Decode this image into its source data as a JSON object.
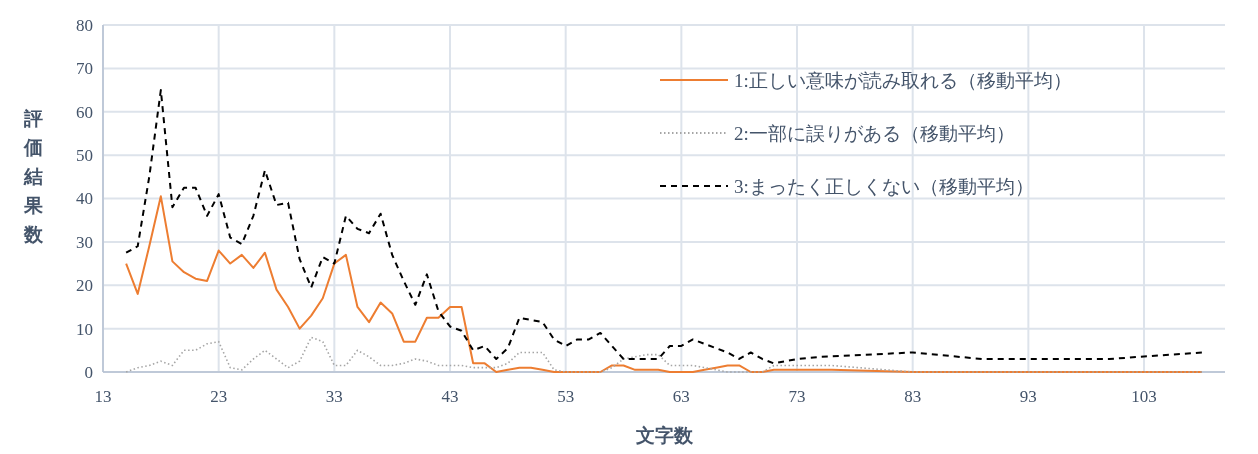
{
  "chart_data": {
    "type": "line",
    "xlabel": "文字数",
    "ylabel": "評価結果数",
    "xlim": [
      13,
      110
    ],
    "xticks": [
      13,
      23,
      33,
      43,
      53,
      63,
      73,
      83,
      93,
      103
    ],
    "ylim": [
      0,
      80
    ],
    "yticks": [
      0,
      10,
      20,
      30,
      40,
      50,
      60,
      70,
      80
    ],
    "grid": true,
    "legend": "top right",
    "marker": "none",
    "series": [
      {
        "name": "1:正しい意味が読み取れる（移動平均）",
        "color": "#ed7d31",
        "line_style": "solid",
        "x": [
          15,
          16,
          17,
          18,
          19,
          20,
          21,
          22,
          23,
          24,
          25,
          26,
          27,
          28,
          29,
          30,
          31,
          32,
          33,
          34,
          35,
          36,
          37,
          38,
          39,
          40,
          41,
          42,
          43,
          44,
          45,
          46,
          47,
          48,
          49,
          50,
          51,
          52,
          53,
          56,
          57,
          58,
          59,
          60,
          61,
          62,
          64,
          65,
          66,
          67,
          68,
          69,
          70,
          71,
          76,
          83,
          108
        ],
        "values": [
          25,
          18,
          29,
          40.5,
          25.5,
          23,
          21.5,
          21,
          28,
          25,
          27,
          24,
          27.5,
          19,
          15,
          10,
          13,
          17,
          25,
          27,
          15,
          11.5,
          16,
          13.5,
          7,
          7,
          12.5,
          12.5,
          15,
          15,
          2,
          2,
          0,
          0.5,
          1,
          1,
          0.5,
          0,
          0,
          0,
          1.5,
          1.5,
          0.5,
          0.5,
          0.5,
          0,
          0,
          0.5,
          1,
          1.5,
          1.5,
          0,
          0,
          0.5,
          0.5,
          0,
          0
        ]
      },
      {
        "name": "2:一部に誤りがある（移動平均）",
        "color": "#a5a5a5",
        "line_style": "dotted",
        "x": [
          15,
          16,
          17,
          18,
          19,
          20,
          21,
          22,
          23,
          24,
          25,
          26,
          27,
          28,
          29,
          30,
          31,
          32,
          33,
          34,
          35,
          36,
          37,
          38,
          39,
          40,
          41,
          42,
          43,
          44,
          45,
          46,
          47,
          48,
          49,
          50,
          51,
          52,
          53,
          56,
          57,
          58,
          59,
          60,
          61,
          62,
          63,
          64,
          65,
          66,
          67,
          68,
          69,
          70,
          71,
          72,
          76,
          83,
          108
        ],
        "values": [
          0,
          1,
          1.5,
          2.5,
          1.5,
          5,
          5,
          6.5,
          7,
          1,
          0.5,
          3,
          5,
          3,
          1,
          2.5,
          8,
          7,
          1.5,
          1.5,
          5,
          3.5,
          1.5,
          1.5,
          2,
          3,
          2.5,
          1.5,
          1.5,
          1.5,
          1,
          1,
          1,
          2,
          4.5,
          4.5,
          4.5,
          0.5,
          0,
          0,
          1,
          3,
          3.5,
          4,
          4,
          1.5,
          1.5,
          1.5,
          1,
          0.5,
          0,
          0,
          0,
          0,
          1.5,
          1.5,
          1.5,
          0,
          0
        ]
      },
      {
        "name": "3:まったく正しくない（移動平均）",
        "color": "#000000",
        "line_style": "dashed",
        "x": [
          15,
          16,
          17,
          18,
          19,
          20,
          21,
          22,
          23,
          24,
          25,
          26,
          27,
          28,
          29,
          30,
          31,
          32,
          33,
          34,
          35,
          36,
          37,
          38,
          39,
          40,
          41,
          42,
          43,
          44,
          45,
          46,
          47,
          48,
          49,
          50,
          51,
          52,
          53,
          54,
          55,
          56,
          57,
          58,
          59,
          60,
          61,
          62,
          63,
          64,
          65,
          66,
          67,
          68,
          69,
          70,
          71,
          72,
          73,
          75,
          83,
          89,
          100,
          108
        ],
        "values": [
          27.5,
          29,
          45,
          65,
          38,
          42.5,
          42.5,
          36,
          41,
          31,
          29.5,
          36,
          46.5,
          38.5,
          39,
          26,
          19.5,
          26.5,
          25,
          36,
          33,
          32,
          36.5,
          27,
          21,
          15.5,
          22.5,
          14,
          10.5,
          9.5,
          5,
          6,
          3,
          5.5,
          12.5,
          12,
          11.5,
          7.5,
          6,
          7.5,
          7.5,
          9,
          6,
          3,
          3,
          3,
          3,
          6,
          6,
          7.5,
          6.5,
          5.5,
          4.5,
          3,
          4.5,
          3,
          2,
          2.5,
          3,
          3.5,
          4.5,
          3,
          3,
          4.5
        ]
      }
    ]
  }
}
